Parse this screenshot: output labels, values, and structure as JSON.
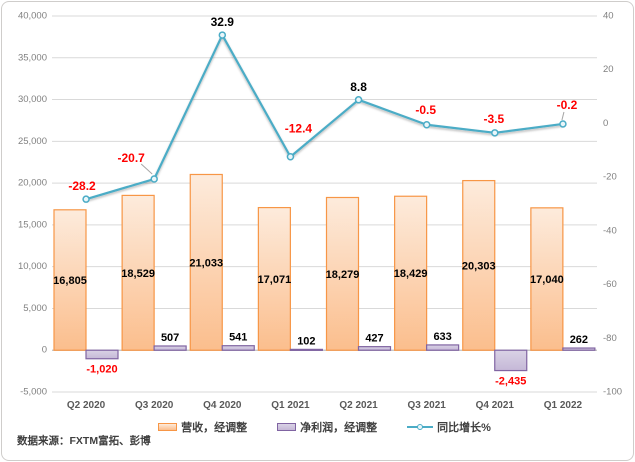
{
  "chart_data": {
    "type": "combo-bar-line",
    "categories": [
      "Q2 2020",
      "Q3 2020",
      "Q4 2020",
      "Q1 2021",
      "Q2 2021",
      "Q3 2021",
      "Q4 2021",
      "Q1 2022"
    ],
    "series": [
      {
        "name": "营收，经调整",
        "type": "bar",
        "axis": "left",
        "values": [
          16805,
          18529,
          21033,
          17071,
          18279,
          18429,
          20303,
          17040
        ],
        "labels": [
          "16,805",
          "18,529",
          "21,033",
          "17,071",
          "18,279",
          "18,429",
          "20,303",
          "17,040"
        ],
        "fill_top": "#FDEBDC",
        "fill_bottom": "#FBBE8D",
        "border": "#F79646"
      },
      {
        "name": "净利润，经调整",
        "type": "bar",
        "axis": "left",
        "values": [
          -1020,
          507,
          541,
          102,
          427,
          633,
          -2435,
          262
        ],
        "labels": [
          "-1,020",
          "507",
          "541",
          "102",
          "427",
          "633",
          "-2,435",
          "262"
        ],
        "fill_top": "#D9D2E5",
        "fill_bottom": "#C5B8D7",
        "border": "#8064A2"
      },
      {
        "name": "同比增长%",
        "type": "line",
        "axis": "right",
        "values": [
          -28.2,
          -20.7,
          32.9,
          -12.4,
          8.8,
          -0.5,
          -3.5,
          -0.2
        ],
        "labels": [
          "-28.2",
          "-20.7",
          "32.9",
          "-12.4",
          "8.8",
          "-0.5",
          "-3.5",
          "-0.2"
        ],
        "color": "#4BACC6"
      }
    ],
    "left_axis": {
      "min": -5000,
      "max": 40000,
      "step": 5000,
      "tick_labels": [
        "40,000",
        "35,000",
        "30,000",
        "25,000",
        "20,000",
        "15,000",
        "10,000",
        "5,000",
        "0",
        "-5,000"
      ]
    },
    "right_axis": {
      "min": -100,
      "max": 40,
      "step": 20,
      "tick_labels": [
        "40",
        "20",
        "0",
        "-20",
        "-40",
        "-60",
        "-80",
        "-100"
      ]
    },
    "grid": true,
    "legend_position": "bottom",
    "label_color_positive": "#000000",
    "label_color_negative": "#FF0000",
    "gridline_color": "#D9D9D9",
    "zero_line_color": "#BFBFBF",
    "axis_text_color": "#808080",
    "category_text_color": "#595959"
  },
  "source_note": "数据来源：FXTM富拓、彭博"
}
